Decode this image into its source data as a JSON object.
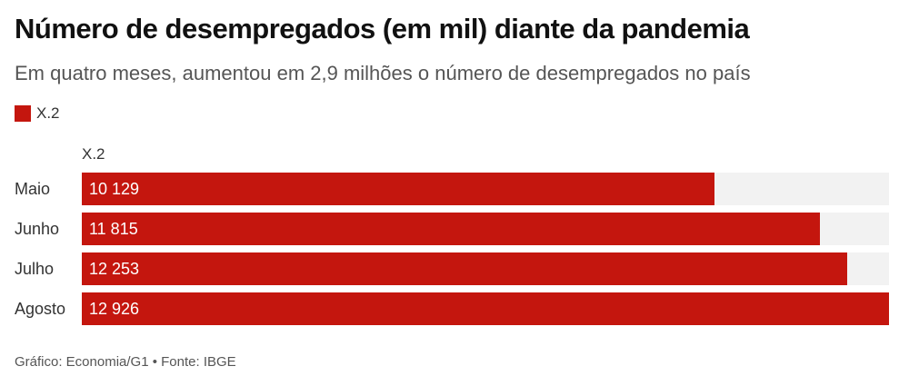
{
  "title": "Número de desempregados (em mil) diante da pandemia",
  "subtitle": "Em quatro meses, aumentou em 2,9 milhões o número de desempregados no país",
  "legend": [
    {
      "name": "X.2",
      "color": "#c4160e"
    }
  ],
  "footer": "Gráfico: Economia/G1 • Fonte: IBGE",
  "colors": {
    "bar": "#c4160e",
    "track": "#f2f2f2"
  },
  "chart_data": {
    "type": "bar",
    "orientation": "horizontal",
    "title": "Número de desempregados (em mil) diante da pandemia",
    "subtitle": "Em quatro meses, aumentou em 2,9 milhões o número de desempregados no país",
    "series_header": "X.2",
    "categories": [
      "Maio",
      "Junho",
      "Julho",
      "Agosto"
    ],
    "series": [
      {
        "name": "X.2",
        "values": [
          10129,
          11815,
          12253,
          12926
        ]
      }
    ],
    "value_labels": [
      "10 129",
      "11 815",
      "12 253",
      "12 926"
    ],
    "xlim": [
      0,
      12926
    ],
    "legend_position": "top-left",
    "grid": false
  }
}
